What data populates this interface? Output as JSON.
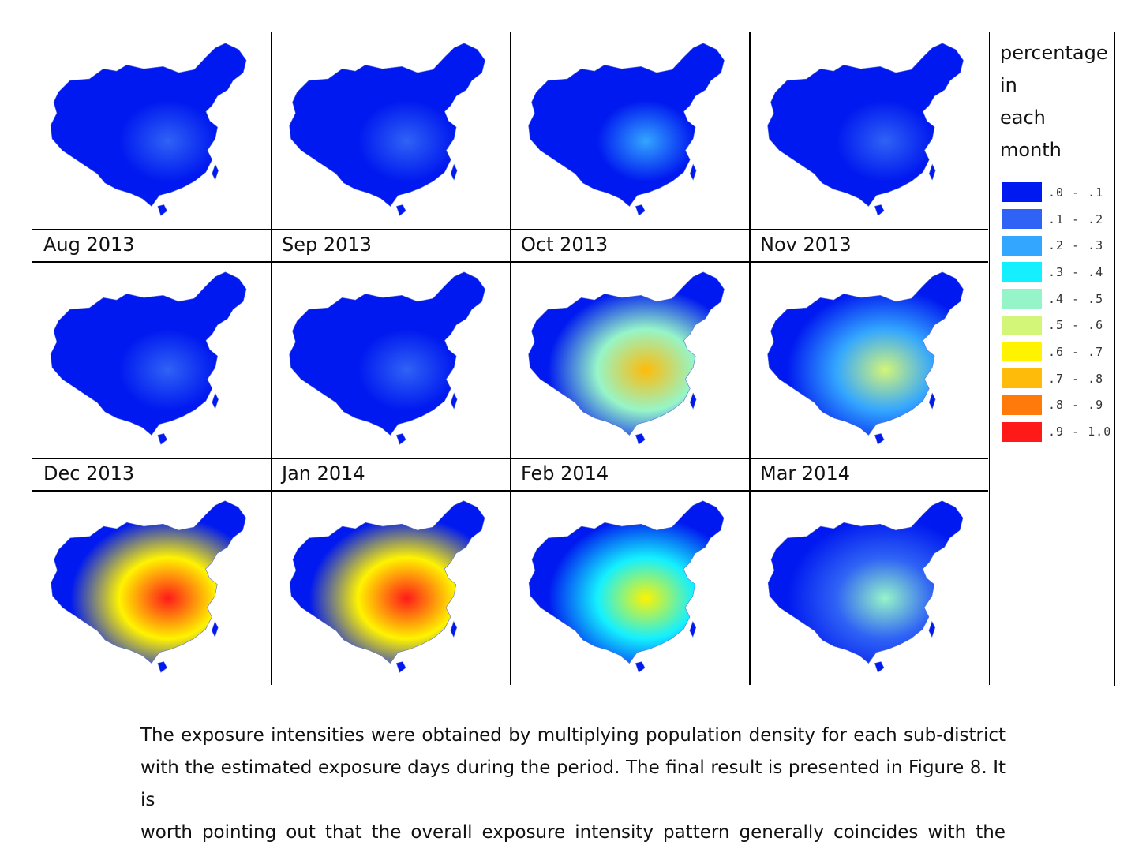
{
  "figure": {
    "panels": [
      {
        "month": "Aug 2013",
        "intensity": 0.12
      },
      {
        "month": "Sep 2013",
        "intensity": 0.15
      },
      {
        "month": "Oct 2013",
        "intensity": 0.2
      },
      {
        "month": "Nov 2013",
        "intensity": 0.12
      },
      {
        "month": "Dec 2013",
        "intensity": 0.1
      },
      {
        "month": "Jan 2014",
        "intensity": 0.14
      },
      {
        "month": "Feb 2014",
        "intensity": 0.75
      },
      {
        "month": "Mar 2014",
        "intensity": 0.55
      },
      {
        "month": "",
        "intensity": 0.95
      },
      {
        "month": "",
        "intensity": 0.9
      },
      {
        "month": "",
        "intensity": 0.6
      },
      {
        "month": "",
        "intensity": 0.45
      }
    ],
    "legend": {
      "title": [
        "percentage",
        "in",
        "each",
        "month"
      ],
      "items": [
        {
          "range": ".0 - .1",
          "color": "#0019f0"
        },
        {
          "range": ".1 - .2",
          "color": "#2f63f5"
        },
        {
          "range": ".2 - .3",
          "color": "#33a6ff"
        },
        {
          "range": ".3 - .4",
          "color": "#14f0ff"
        },
        {
          "range": ".4 - .5",
          "color": "#96f5c8"
        },
        {
          "range": ".5 - .6",
          "color": "#d3f578"
        },
        {
          "range": ".6 - .7",
          "color": "#fff300"
        },
        {
          "range": ".7 - .8",
          "color": "#ffbb0a"
        },
        {
          "range": ".8 - .9",
          "color": "#ff7a0a"
        },
        {
          "range": ".9 - 1.0",
          "color": "#ff1a1a"
        }
      ]
    }
  },
  "body_text": [
    "The exposure intensities were obtained by multiplying population density for each sub-district",
    "with the estimated exposure days during the period. The final result is presented in Figure 8. It is",
    "worth pointing out that the overall exposure intensity pattern generally coincides with the"
  ]
}
